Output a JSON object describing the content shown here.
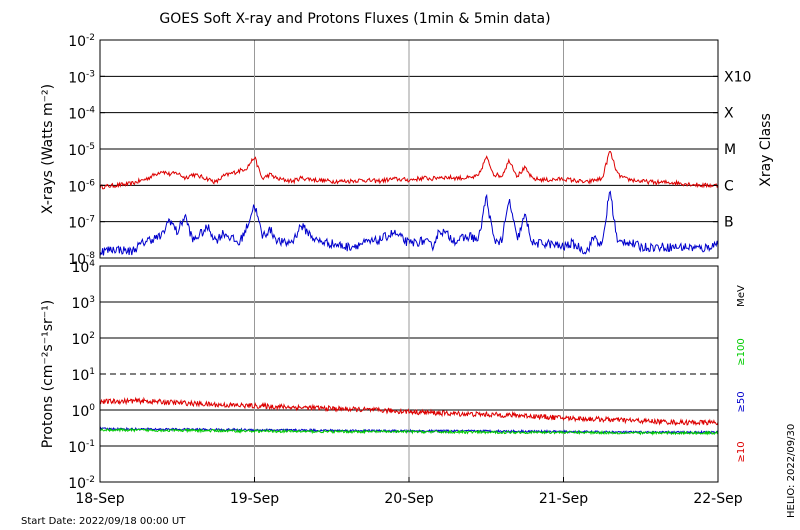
{
  "chart_data": [
    {
      "type": "line",
      "title": "GOES Soft X-ray and Protons Fluxes   (1min & 5min data)",
      "ylabel": "X-rays (Watts m⁻²)",
      "yscale": "log",
      "ylim": [
        1e-08,
        0.01
      ],
      "y_tick_labels": [
        "10-8",
        "10-7",
        "10-6",
        "10-5",
        "10-4",
        "10-3",
        "10-2"
      ],
      "xlim": [
        "2022-09-18 00:00",
        "2022-09-22 00:00"
      ],
      "right_axis": {
        "label": "Xray Class",
        "classes": [
          {
            "label": "B",
            "value": 1e-07
          },
          {
            "label": "C",
            "value": 1e-06
          },
          {
            "label": "M",
            "value": 1e-05
          },
          {
            "label": "X",
            "value": 0.0001
          },
          {
            "label": "X10",
            "value": 0.001
          }
        ]
      },
      "grid": "horizontal lines at decades, vertical lines at day boundaries",
      "series": [
        {
          "color": "#dd0000",
          "x_days": [
            0,
            0.1,
            0.2,
            0.3,
            0.4,
            0.45,
            0.5,
            0.55,
            0.6,
            0.7,
            0.75,
            0.8,
            0.9,
            0.95,
            1.0,
            1.05,
            1.1,
            1.15,
            1.2,
            1.25,
            1.3,
            1.4,
            1.5,
            1.6,
            1.7,
            1.8,
            1.9,
            2.0,
            2.1,
            2.15,
            2.2,
            2.3,
            2.4,
            2.45,
            2.5,
            2.55,
            2.6,
            2.65,
            2.7,
            2.75,
            2.8,
            2.9,
            3.0,
            3.05,
            3.1,
            3.15,
            3.2,
            3.25,
            3.3,
            3.35,
            3.4,
            3.5,
            3.6,
            3.7,
            3.8,
            3.9,
            4.0
          ],
          "values": [
            9e-07,
            1e-06,
            1.1e-06,
            1.5e-06,
            2.5e-06,
            2e-06,
            2.2e-06,
            1.6e-06,
            2e-06,
            1.5e-06,
            1.2e-06,
            1.8e-06,
            2.5e-06,
            3e-06,
            6e-06,
            1.5e-06,
            2e-06,
            1.5e-06,
            1.4e-06,
            1.3e-06,
            1.6e-06,
            1.4e-06,
            1.3e-06,
            1.3e-06,
            1.4e-06,
            1.3e-06,
            1.5e-06,
            1.4e-06,
            1.6e-06,
            1.5e-06,
            1.7e-06,
            1.6e-06,
            1.6e-06,
            1.8e-06,
            6e-06,
            2e-06,
            1.8e-06,
            5e-06,
            1.8e-06,
            3e-06,
            1.5e-06,
            1.4e-06,
            1.5e-06,
            1.4e-06,
            1.3e-06,
            1.2e-06,
            1.4e-06,
            1.5e-06,
            9e-06,
            2e-06,
            1.5e-06,
            1.3e-06,
            1.2e-06,
            1.2e-06,
            1.1e-06,
            1e-06,
            1e-06
          ]
        },
        {
          "color": "#0000cc",
          "x_days": [
            0,
            0.1,
            0.2,
            0.3,
            0.4,
            0.45,
            0.5,
            0.55,
            0.6,
            0.7,
            0.75,
            0.8,
            0.9,
            0.95,
            1.0,
            1.05,
            1.1,
            1.15,
            1.2,
            1.25,
            1.3,
            1.4,
            1.5,
            1.6,
            1.7,
            1.8,
            1.9,
            2.0,
            2.1,
            2.15,
            2.2,
            2.3,
            2.4,
            2.45,
            2.5,
            2.55,
            2.6,
            2.65,
            2.7,
            2.75,
            2.8,
            2.9,
            3.0,
            3.05,
            3.1,
            3.15,
            3.2,
            3.25,
            3.3,
            3.35,
            3.4,
            3.5,
            3.6,
            3.7,
            3.8,
            3.9,
            4.0
          ],
          "values": [
            1.5e-08,
            1.8e-08,
            1.5e-08,
            3e-08,
            4e-08,
            1.2e-07,
            5e-08,
            1.5e-07,
            3e-08,
            7e-08,
            3e-08,
            5e-08,
            2.5e-08,
            7e-08,
            3e-07,
            4e-08,
            6e-08,
            3e-08,
            2.5e-08,
            3e-08,
            8e-08,
            3e-08,
            2.5e-08,
            2e-08,
            2.5e-08,
            3e-08,
            5e-08,
            2.5e-08,
            3e-08,
            2e-08,
            6e-08,
            3e-08,
            4e-08,
            3e-08,
            5e-07,
            3e-08,
            3e-08,
            4e-07,
            3e-08,
            1.5e-07,
            2.5e-08,
            2.5e-08,
            2e-08,
            2.5e-08,
            2e-08,
            1.5e-08,
            4e-08,
            2e-08,
            8e-07,
            2.5e-08,
            3e-08,
            2e-08,
            2e-08,
            2e-08,
            2e-08,
            1.8e-08,
            2.5e-08
          ]
        }
      ]
    },
    {
      "type": "line",
      "ylabel": "Protons (cm⁻²s⁻¹sr⁻¹)",
      "yscale": "log",
      "ylim": [
        0.01,
        10000
      ],
      "y_tick_labels": [
        "10-2",
        "10-1",
        "10 0",
        "10 1",
        "10 2",
        "10 3",
        "10 4"
      ],
      "xlim": [
        "2022-09-18 00:00",
        "2022-09-22 00:00"
      ],
      "x_tick_labels": [
        "18-Sep",
        "19-Sep",
        "20-Sep",
        "21-Sep",
        "22-Sep"
      ],
      "threshold_dashed": 10,
      "right_axis": {
        "unit": "MeV",
        "channels": [
          {
            "label": "≥100",
            "color": "#00cc00"
          },
          {
            "label": "≥50",
            "color": "#0000cc"
          },
          {
            "label": "≥10",
            "color": "#dd0000"
          }
        ]
      },
      "series": [
        {
          "color": "#dd0000",
          "x_days": [
            0,
            0.25,
            0.5,
            0.75,
            1.0,
            1.25,
            1.5,
            1.75,
            2.0,
            2.25,
            2.5,
            2.75,
            3.0,
            3.25,
            3.5,
            3.75,
            4.0
          ],
          "values": [
            1.7,
            1.8,
            1.6,
            1.4,
            1.3,
            1.2,
            1.1,
            1.0,
            0.9,
            0.8,
            0.75,
            0.7,
            0.6,
            0.55,
            0.5,
            0.45,
            0.45
          ]
        },
        {
          "color": "#0000cc",
          "x_days": [
            0,
            0.5,
            1.0,
            1.5,
            2.0,
            2.5,
            3.0,
            3.5,
            4.0
          ],
          "values": [
            0.3,
            0.29,
            0.28,
            0.27,
            0.26,
            0.26,
            0.25,
            0.24,
            0.24
          ]
        },
        {
          "color": "#00cc00",
          "x_days": [
            0,
            0.5,
            1.0,
            1.5,
            2.0,
            2.5,
            3.0,
            3.5,
            4.0
          ],
          "values": [
            0.28,
            0.27,
            0.26,
            0.25,
            0.25,
            0.24,
            0.24,
            0.23,
            0.23
          ]
        }
      ]
    }
  ],
  "footer": {
    "start_date": "Start Date: 2022/09/18 00:00 UT",
    "credit": "HELIO: 2022/09/30"
  }
}
